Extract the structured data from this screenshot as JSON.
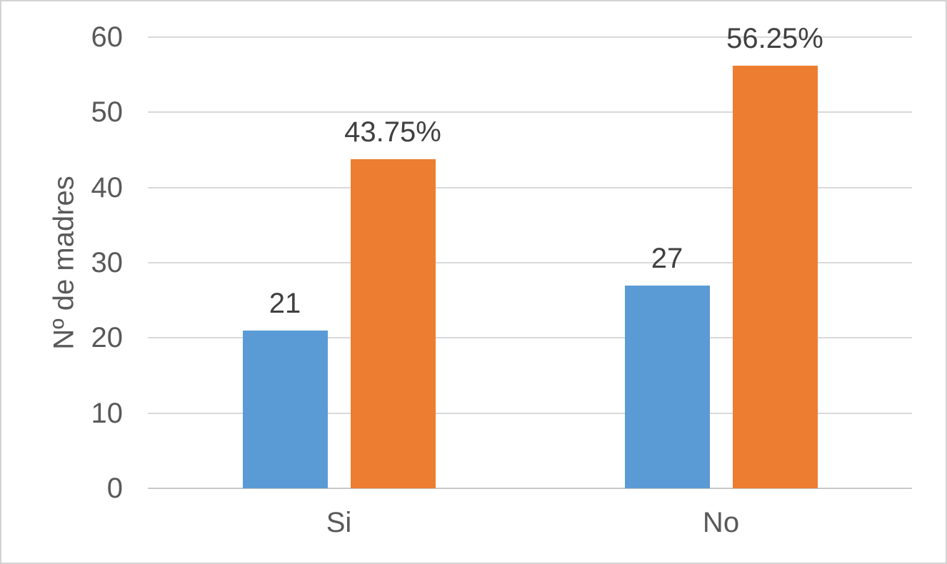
{
  "chart_data": {
    "type": "bar",
    "categories": [
      "Si",
      "No"
    ],
    "series": [
      {
        "values": [
          21,
          27
        ],
        "labels": [
          "21",
          "27"
        ],
        "color": "#5B9BD5"
      },
      {
        "values": [
          43.75,
          56.25
        ],
        "labels": [
          "43.75%",
          "56.25%"
        ],
        "color": "#ED7D31"
      }
    ],
    "ylabel": "Nº de madres",
    "ylim": [
      0,
      60
    ],
    "yticks": [
      0,
      10,
      20,
      30,
      40,
      50,
      60
    ],
    "grid": "horizontal",
    "legend": "none",
    "style": {
      "background": "#FFFFFF",
      "border_color": "#D3D3D3",
      "grid_color": "#D9D9D9",
      "axis_line_color": "#C8C8C8",
      "axis_text_color": "#595959",
      "data_label_color": "#404040"
    }
  }
}
